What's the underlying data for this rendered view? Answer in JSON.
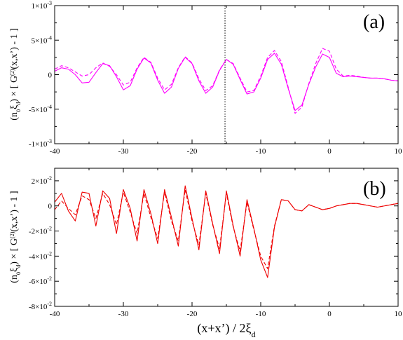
{
  "chart_data": [
    {
      "type": "line",
      "panel_label": "(a)",
      "ylabel": "(n₀ξₓ) × [ G⁽²⁾(x,x’) - 1 ]",
      "ylabel_parts": {
        "pre": "(n",
        "sub0": "0",
        "xi": "ξ",
        "subd": "d",
        "post": ") × [ G",
        "sup": "(2)",
        "tail": "(x,x’) - 1 ]"
      },
      "xlim": [
        -40,
        10
      ],
      "ylim": [
        -0.001,
        0.001
      ],
      "xticks": [
        -40,
        -30,
        -20,
        -10,
        0,
        10
      ],
      "xtick_labels": [
        "-40",
        "-30",
        "-20",
        "-10",
        "0",
        "10"
      ],
      "yticks": [
        {
          "value": -0.001,
          "mant": "-1×10",
          "exp": "-3"
        },
        {
          "value": -0.0005,
          "mant": "-5×10",
          "exp": "-4"
        },
        {
          "value": 0,
          "mant": "0",
          "exp": ""
        },
        {
          "value": 0.0005,
          "mant": "5×10",
          "exp": "-4"
        },
        {
          "value": 0.001,
          "mant": "1×10",
          "exp": "-3"
        }
      ],
      "color": "#ff00ff",
      "vline": -15.2,
      "series": [
        {
          "style": "solid",
          "x": [
            -40,
            -39,
            -38,
            -37,
            -36,
            -35,
            -34,
            -33,
            -32,
            -31,
            -30,
            -29,
            -28,
            -27,
            -26,
            -25,
            -24,
            -23,
            -22,
            -21,
            -20,
            -19,
            -18,
            -17,
            -16,
            -15,
            -14,
            -13,
            -12,
            -11,
            -10,
            -9,
            -8,
            -7,
            -6,
            -5,
            -4,
            -3,
            -2,
            -1,
            0,
            1,
            2,
            3,
            4,
            5,
            6,
            7,
            8,
            9,
            10
          ],
          "y": [
            5e-05,
            0.0001,
            8e-05,
            0.0,
            -0.00012,
            -0.00011,
            3e-05,
            0.00016,
            0.00013,
            -3e-05,
            -0.00022,
            -0.00016,
            8e-05,
            0.00024,
            0.00017,
            -8e-05,
            -0.00027,
            -0.00018,
            9e-05,
            0.00025,
            0.00016,
            -9e-05,
            -0.00027,
            -0.00018,
            6e-05,
            0.00022,
            0.00015,
            -7e-05,
            -0.00028,
            -0.00025,
            -5e-05,
            0.00022,
            0.00031,
            0.00015,
            -0.0002,
            -0.00052,
            -0.00044,
            -0.00014,
            0.00011,
            0.0003,
            0.00025,
            2e-05,
            -3e-05,
            -2e-05,
            -3e-05,
            -4e-05,
            -5e-05,
            -5e-05,
            -6e-05,
            -8e-05,
            -9e-05
          ]
        },
        {
          "style": "dashed",
          "x": [
            -40,
            -39,
            -38,
            -37,
            -36,
            -35,
            -34,
            -33,
            -32,
            -31,
            -30,
            -29,
            -28,
            -27,
            -26,
            -25,
            -24,
            -23,
            -22,
            -21,
            -20,
            -19,
            -18,
            -17,
            -16,
            -15,
            -14,
            -13,
            -12,
            -11,
            -10,
            -9,
            -8,
            -7,
            -6,
            -5,
            -4,
            -3,
            -2,
            -1,
            0,
            1,
            2,
            3,
            4,
            5,
            6,
            7,
            8,
            9,
            10
          ],
          "y": [
            8e-05,
            0.00013,
            0.0001,
            4e-05,
            -2e-05,
            0.0,
            0.0001,
            0.00017,
            0.00012,
            0.0,
            -0.00015,
            -0.00011,
            0.0001,
            0.00025,
            0.00018,
            -5e-05,
            -0.00022,
            -0.00014,
            0.0001,
            0.00026,
            0.00017,
            -6e-05,
            -0.00023,
            -0.00016,
            7e-05,
            0.00022,
            0.00016,
            -5e-05,
            -0.00025,
            -0.00023,
            -2e-05,
            0.00025,
            0.00035,
            0.00019,
            -0.00018,
            -0.00056,
            -0.00047,
            -0.00013,
            0.00016,
            0.00038,
            0.00034,
            8e-05,
            -2e-05,
            -1e-05,
            -2e-05,
            -4e-05,
            -5e-05,
            -5e-05,
            -6e-05,
            -8e-05,
            -9e-05
          ]
        }
      ]
    },
    {
      "type": "line",
      "panel_label": "(b)",
      "ylabel": "(n₀ξₓ) × [ G⁽²⁾(x,x’) - 1 ]",
      "ylabel_parts": {
        "pre": "(n",
        "sub0": "0",
        "xi": "ξ",
        "subd": "d",
        "post": ") × [ G",
        "sup": "(2)",
        "tail": "(x,x’) - 1 ]"
      },
      "xlabel": "(x+x’) / 2ξ",
      "xlabel_sub": "d",
      "xlim": [
        -40,
        10
      ],
      "ylim": [
        -0.08,
        0.03
      ],
      "xticks": [
        -40,
        -30,
        -20,
        -10,
        0,
        10
      ],
      "xtick_labels": [
        "-40",
        "-30",
        "-20",
        "-10",
        "0",
        "10"
      ],
      "yticks": [
        {
          "value": -0.08,
          "mant": "-8×10",
          "exp": "-2"
        },
        {
          "value": -0.06,
          "mant": "-6×10",
          "exp": "-2"
        },
        {
          "value": -0.04,
          "mant": "-4×10",
          "exp": "-2"
        },
        {
          "value": -0.02,
          "mant": "-2×10",
          "exp": "-2"
        },
        {
          "value": 0,
          "mant": "0",
          "exp": ""
        },
        {
          "value": 0.02,
          "mant": "2×10",
          "exp": "-2"
        }
      ],
      "color": "#ee0000",
      "series": [
        {
          "style": "solid",
          "x": [
            -40,
            -39,
            -38,
            -37,
            -36,
            -35,
            -34,
            -33,
            -32,
            -31,
            -30,
            -29,
            -28,
            -27,
            -26,
            -25,
            -24,
            -23,
            -22,
            -21,
            -20,
            -19,
            -18,
            -17,
            -16,
            -15,
            -14,
            -13,
            -12,
            -11,
            -10,
            -9,
            -8,
            -7,
            -6,
            -5,
            -4,
            -3,
            -2,
            -1,
            0,
            1,
            2,
            3,
            4,
            5,
            6,
            7,
            8,
            9,
            10
          ],
          "y": [
            0.003,
            0.01,
            -0.004,
            -0.012,
            0.011,
            0.01,
            -0.016,
            0.012,
            0.006,
            -0.022,
            0.013,
            -0.002,
            -0.028,
            0.013,
            -0.006,
            -0.03,
            0.013,
            -0.009,
            -0.032,
            0.016,
            -0.01,
            -0.035,
            0.012,
            -0.014,
            -0.038,
            0.012,
            -0.016,
            -0.04,
            0.005,
            -0.018,
            -0.043,
            -0.057,
            -0.017,
            0.005,
            0.004,
            -0.003,
            -0.004,
            0.001,
            -0.001,
            -0.003,
            -0.002,
            0.0,
            0.001,
            0.002,
            0.002,
            0.001,
            0.0,
            -0.001,
            0.0,
            0.001,
            0.002
          ]
        },
        {
          "style": "dashed",
          "x": [
            -40,
            -39,
            -38,
            -37,
            -36,
            -35,
            -34,
            -33,
            -32,
            -31,
            -30,
            -29,
            -28,
            -27,
            -26,
            -25,
            -24,
            -23,
            -22,
            -21,
            -20,
            -19,
            -18,
            -17,
            -16,
            -15,
            -14,
            -13,
            -12,
            -11,
            -10,
            -9,
            -8,
            -7,
            -6,
            -5,
            -4,
            -3,
            -2,
            -1,
            0,
            1,
            2,
            3,
            4,
            5,
            6,
            7,
            8,
            9,
            10
          ],
          "y": [
            -0.003,
            0.004,
            -0.002,
            -0.007,
            0.008,
            0.005,
            -0.01,
            0.01,
            0.001,
            -0.015,
            0.011,
            -0.005,
            -0.022,
            0.01,
            -0.009,
            -0.026,
            0.011,
            -0.012,
            -0.028,
            0.013,
            -0.012,
            -0.031,
            0.01,
            -0.015,
            -0.034,
            0.01,
            -0.017,
            -0.036,
            0.003,
            -0.019,
            -0.04,
            -0.05,
            -0.016,
            0.005,
            0.004,
            -0.003,
            -0.004,
            0.001,
            -0.001,
            -0.003,
            -0.002,
            0.0,
            0.001,
            0.002,
            0.002,
            0.001,
            0.0,
            -0.001,
            0.0,
            0.001,
            0.002
          ]
        }
      ]
    }
  ]
}
